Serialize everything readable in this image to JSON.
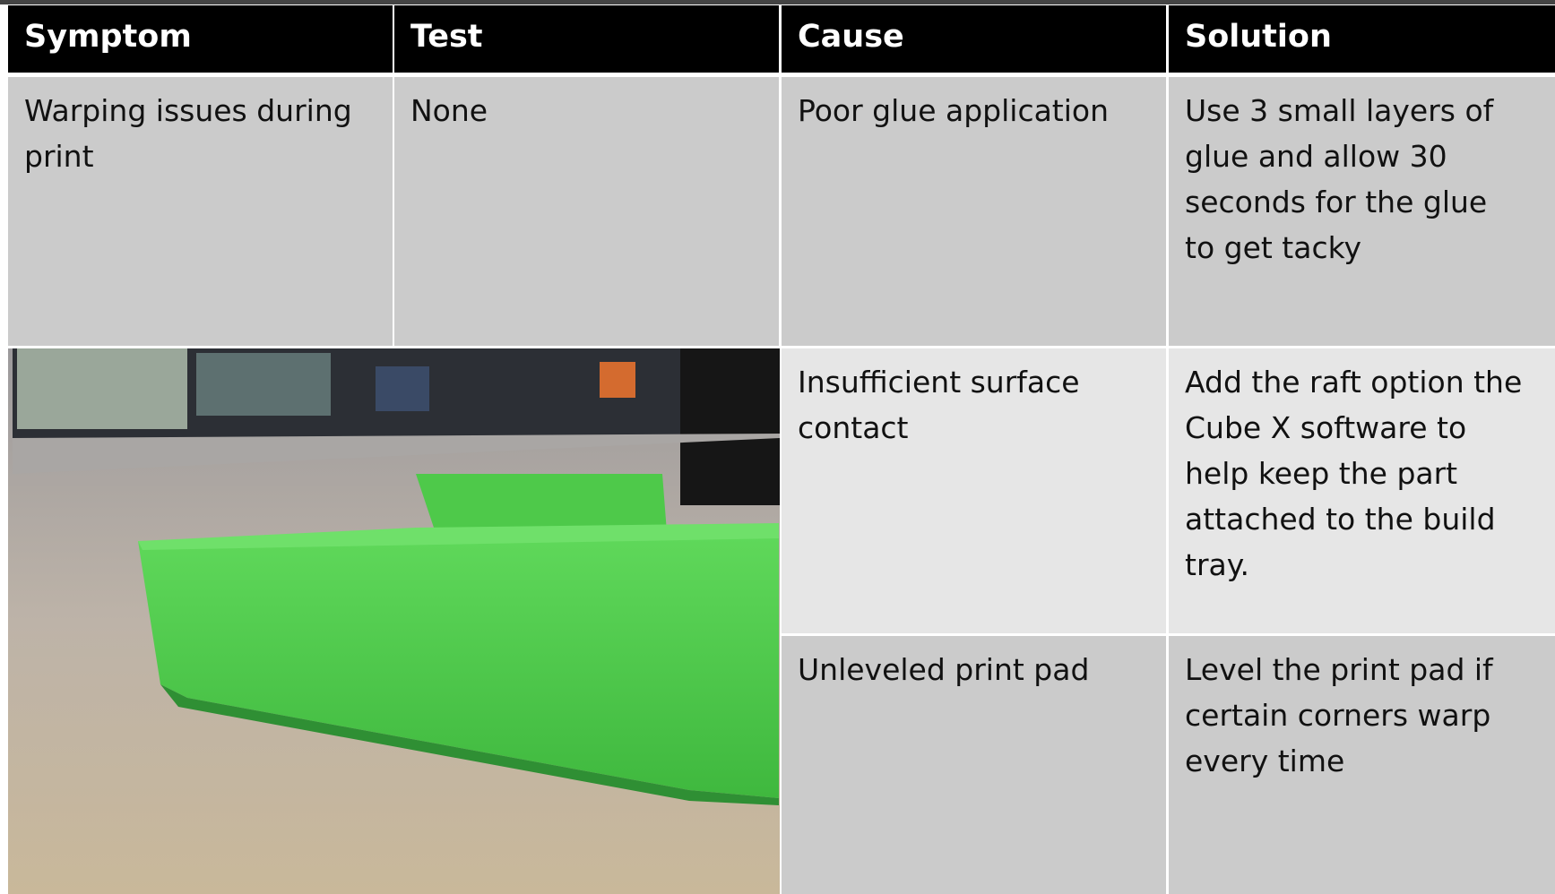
{
  "table": {
    "header": [
      "Symptom",
      "Test",
      "Cause",
      "Solution"
    ],
    "rows": [
      {
        "symptom": "Warping issues during print",
        "test": "None",
        "cause": "Poor glue application",
        "solution": "Use 3 small layers of glue and allow 30 seconds for the glue to get tacky"
      },
      {
        "cause": "Insufficient surface contact",
        "solution": "Add the raft option the Cube X software to help keep the part attached to the build tray."
      },
      {
        "cause": "Unleveled print pad",
        "solution": "Level the print pad if certain corners warp every time"
      }
    ]
  }
}
